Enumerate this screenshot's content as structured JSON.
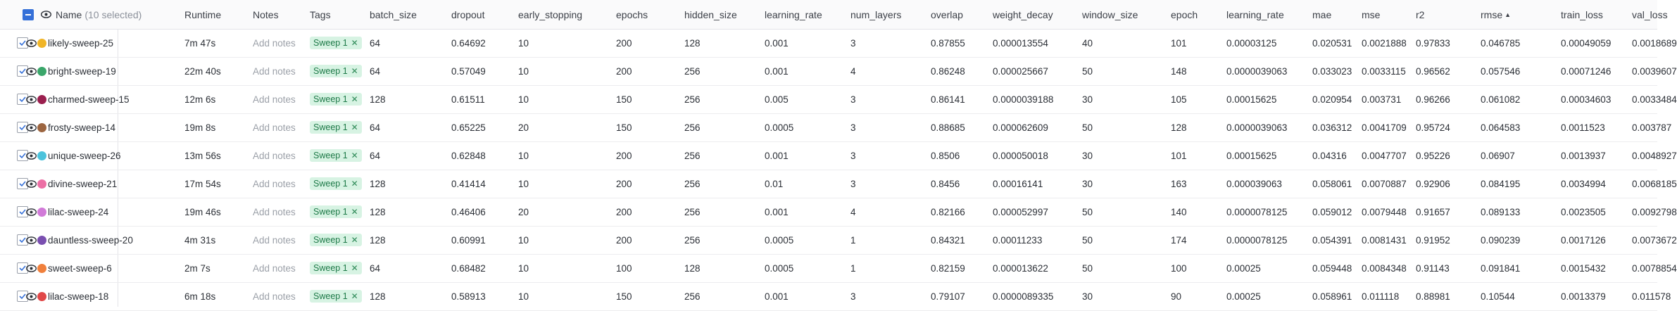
{
  "header": {
    "name_label": "Name",
    "selected_label": "(10 selected)",
    "columns": [
      "Runtime",
      "Notes",
      "Tags",
      "batch_size",
      "dropout",
      "early_stopping",
      "epochs",
      "hidden_size",
      "learning_rate",
      "num_layers",
      "overlap",
      "weight_decay",
      "window_size",
      "epoch",
      "learning_rate",
      "mae",
      "mse",
      "r2",
      "rmse",
      "train_loss",
      "val_loss"
    ],
    "sorted_column": "rmse",
    "sort_direction": "ascending"
  },
  "rows": [
    {
      "name": "likely-sweep-25",
      "color": "#f0b528",
      "runtime": "7m 47s",
      "notes": "Add notes",
      "tag": "Sweep 1",
      "batch_size": "64",
      "dropout": "0.64692",
      "early_stopping": "10",
      "epochs": "200",
      "hidden_size": "128",
      "learning_rate": "0.001",
      "num_layers": "3",
      "overlap": "0.87855",
      "weight_decay": "0.000013554",
      "window_size": "40",
      "epoch": "101",
      "learning_rate_2": "0.00003125",
      "mae": "0.020531",
      "mse": "0.0021888",
      "r2": "0.97833",
      "rmse": "0.046785",
      "train_loss": "0.00049059",
      "val_loss": "0.0018689"
    },
    {
      "name": "bright-sweep-19",
      "color": "#3aa66a",
      "runtime": "22m 40s",
      "notes": "Add notes",
      "tag": "Sweep 1",
      "batch_size": "64",
      "dropout": "0.57049",
      "early_stopping": "10",
      "epochs": "200",
      "hidden_size": "256",
      "learning_rate": "0.001",
      "num_layers": "4",
      "overlap": "0.86248",
      "weight_decay": "0.000025667",
      "window_size": "50",
      "epoch": "148",
      "learning_rate_2": "0.0000039063",
      "mae": "0.033023",
      "mse": "0.0033115",
      "r2": "0.96562",
      "rmse": "0.057546",
      "train_loss": "0.00071246",
      "val_loss": "0.0039607"
    },
    {
      "name": "charmed-sweep-15",
      "color": "#9a1f4e",
      "runtime": "12m 6s",
      "notes": "Add notes",
      "tag": "Sweep 1",
      "batch_size": "128",
      "dropout": "0.61511",
      "early_stopping": "10",
      "epochs": "150",
      "hidden_size": "256",
      "learning_rate": "0.005",
      "num_layers": "3",
      "overlap": "0.86141",
      "weight_decay": "0.0000039188",
      "window_size": "30",
      "epoch": "105",
      "learning_rate_2": "0.00015625",
      "mae": "0.020954",
      "mse": "0.003731",
      "r2": "0.96266",
      "rmse": "0.061082",
      "train_loss": "0.00034603",
      "val_loss": "0.0033484"
    },
    {
      "name": "frosty-sweep-14",
      "color": "#9c6540",
      "runtime": "19m 8s",
      "notes": "Add notes",
      "tag": "Sweep 1",
      "batch_size": "64",
      "dropout": "0.65225",
      "early_stopping": "20",
      "epochs": "150",
      "hidden_size": "256",
      "learning_rate": "0.0005",
      "num_layers": "3",
      "overlap": "0.88685",
      "weight_decay": "0.000062609",
      "window_size": "50",
      "epoch": "128",
      "learning_rate_2": "0.0000039063",
      "mae": "0.036312",
      "mse": "0.0041709",
      "r2": "0.95724",
      "rmse": "0.064583",
      "train_loss": "0.0011523",
      "val_loss": "0.003787"
    },
    {
      "name": "unique-sweep-26",
      "color": "#4cc3dc",
      "runtime": "13m 56s",
      "notes": "Add notes",
      "tag": "Sweep 1",
      "batch_size": "64",
      "dropout": "0.62848",
      "early_stopping": "10",
      "epochs": "200",
      "hidden_size": "256",
      "learning_rate": "0.001",
      "num_layers": "3",
      "overlap": "0.8506",
      "weight_decay": "0.000050018",
      "window_size": "30",
      "epoch": "101",
      "learning_rate_2": "0.00015625",
      "mae": "0.04316",
      "mse": "0.0047707",
      "r2": "0.95226",
      "rmse": "0.06907",
      "train_loss": "0.0013937",
      "val_loss": "0.0048927"
    },
    {
      "name": "divine-sweep-21",
      "color": "#ec6fa5",
      "runtime": "17m 54s",
      "notes": "Add notes",
      "tag": "Sweep 1",
      "batch_size": "128",
      "dropout": "0.41414",
      "early_stopping": "10",
      "epochs": "200",
      "hidden_size": "256",
      "learning_rate": "0.01",
      "num_layers": "3",
      "overlap": "0.8456",
      "weight_decay": "0.00016141",
      "window_size": "30",
      "epoch": "163",
      "learning_rate_2": "0.000039063",
      "mae": "0.058061",
      "mse": "0.0070887",
      "r2": "0.92906",
      "rmse": "0.084195",
      "train_loss": "0.0034994",
      "val_loss": "0.0068185"
    },
    {
      "name": "lilac-sweep-24",
      "color": "#d17ad8",
      "runtime": "19m 46s",
      "notes": "Add notes",
      "tag": "Sweep 1",
      "batch_size": "128",
      "dropout": "0.46406",
      "early_stopping": "20",
      "epochs": "200",
      "hidden_size": "256",
      "learning_rate": "0.001",
      "num_layers": "4",
      "overlap": "0.82166",
      "weight_decay": "0.000052997",
      "window_size": "50",
      "epoch": "140",
      "learning_rate_2": "0.0000078125",
      "mae": "0.059012",
      "mse": "0.0079448",
      "r2": "0.91657",
      "rmse": "0.089133",
      "train_loss": "0.0023505",
      "val_loss": "0.0092798"
    },
    {
      "name": "dauntless-sweep-20",
      "color": "#7a4fb0",
      "runtime": "4m 31s",
      "notes": "Add notes",
      "tag": "Sweep 1",
      "batch_size": "128",
      "dropout": "0.60991",
      "early_stopping": "10",
      "epochs": "200",
      "hidden_size": "256",
      "learning_rate": "0.0005",
      "num_layers": "1",
      "overlap": "0.84321",
      "weight_decay": "0.00011233",
      "window_size": "50",
      "epoch": "174",
      "learning_rate_2": "0.0000078125",
      "mae": "0.054391",
      "mse": "0.0081431",
      "r2": "0.91952",
      "rmse": "0.090239",
      "train_loss": "0.0017126",
      "val_loss": "0.0073672"
    },
    {
      "name": "sweet-sweep-6",
      "color": "#f0803c",
      "runtime": "2m 7s",
      "notes": "Add notes",
      "tag": "Sweep 1",
      "batch_size": "64",
      "dropout": "0.68482",
      "early_stopping": "10",
      "epochs": "100",
      "hidden_size": "128",
      "learning_rate": "0.0005",
      "num_layers": "1",
      "overlap": "0.82159",
      "weight_decay": "0.000013622",
      "window_size": "50",
      "epoch": "100",
      "learning_rate_2": "0.00025",
      "mae": "0.059448",
      "mse": "0.0084348",
      "r2": "0.91143",
      "rmse": "0.091841",
      "train_loss": "0.0015432",
      "val_loss": "0.0078854"
    },
    {
      "name": "lilac-sweep-18",
      "color": "#e04848",
      "runtime": "6m 18s",
      "notes": "Add notes",
      "tag": "Sweep 1",
      "batch_size": "128",
      "dropout": "0.58913",
      "early_stopping": "10",
      "epochs": "150",
      "hidden_size": "256",
      "learning_rate": "0.001",
      "num_layers": "3",
      "overlap": "0.79107",
      "weight_decay": "0.0000089335",
      "window_size": "30",
      "epoch": "90",
      "learning_rate_2": "0.00025",
      "mae": "0.058961",
      "mse": "0.011118",
      "r2": "0.88981",
      "rmse": "0.10544",
      "train_loss": "0.0013379",
      "val_loss": "0.011578"
    }
  ]
}
